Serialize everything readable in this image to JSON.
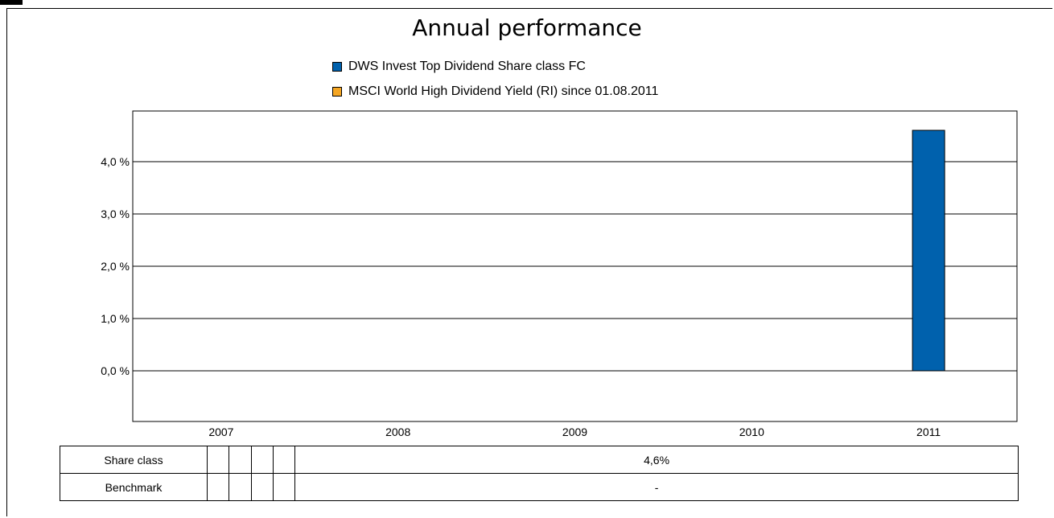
{
  "chart_data": {
    "type": "bar",
    "title": "Annual performance",
    "categories": [
      "2007",
      "2008",
      "2009",
      "2010",
      "2011"
    ],
    "series": [
      {
        "name": "DWS Invest Top Dividend Share class FC",
        "color": "#0061ad",
        "values": [
          null,
          null,
          null,
          null,
          4.6
        ]
      },
      {
        "name": "MSCI World High Dividend Yield (RI) since 01.08.2011",
        "color": "#f5a623",
        "values": [
          null,
          null,
          null,
          null,
          null
        ]
      }
    ],
    "yticks": [
      "0,0 %",
      "1,0 %",
      "2,0 %",
      "3,0 %",
      "4,0 %"
    ],
    "ylim": [
      -1.0,
      4.9
    ],
    "grid": true,
    "legend": "top-center"
  },
  "table": {
    "rows": [
      {
        "label": "Share class",
        "cells": [
          "",
          "",
          "",
          "",
          "4,6%"
        ]
      },
      {
        "label": "Benchmark",
        "cells": [
          "",
          "",
          "",
          "",
          "-"
        ]
      }
    ]
  }
}
